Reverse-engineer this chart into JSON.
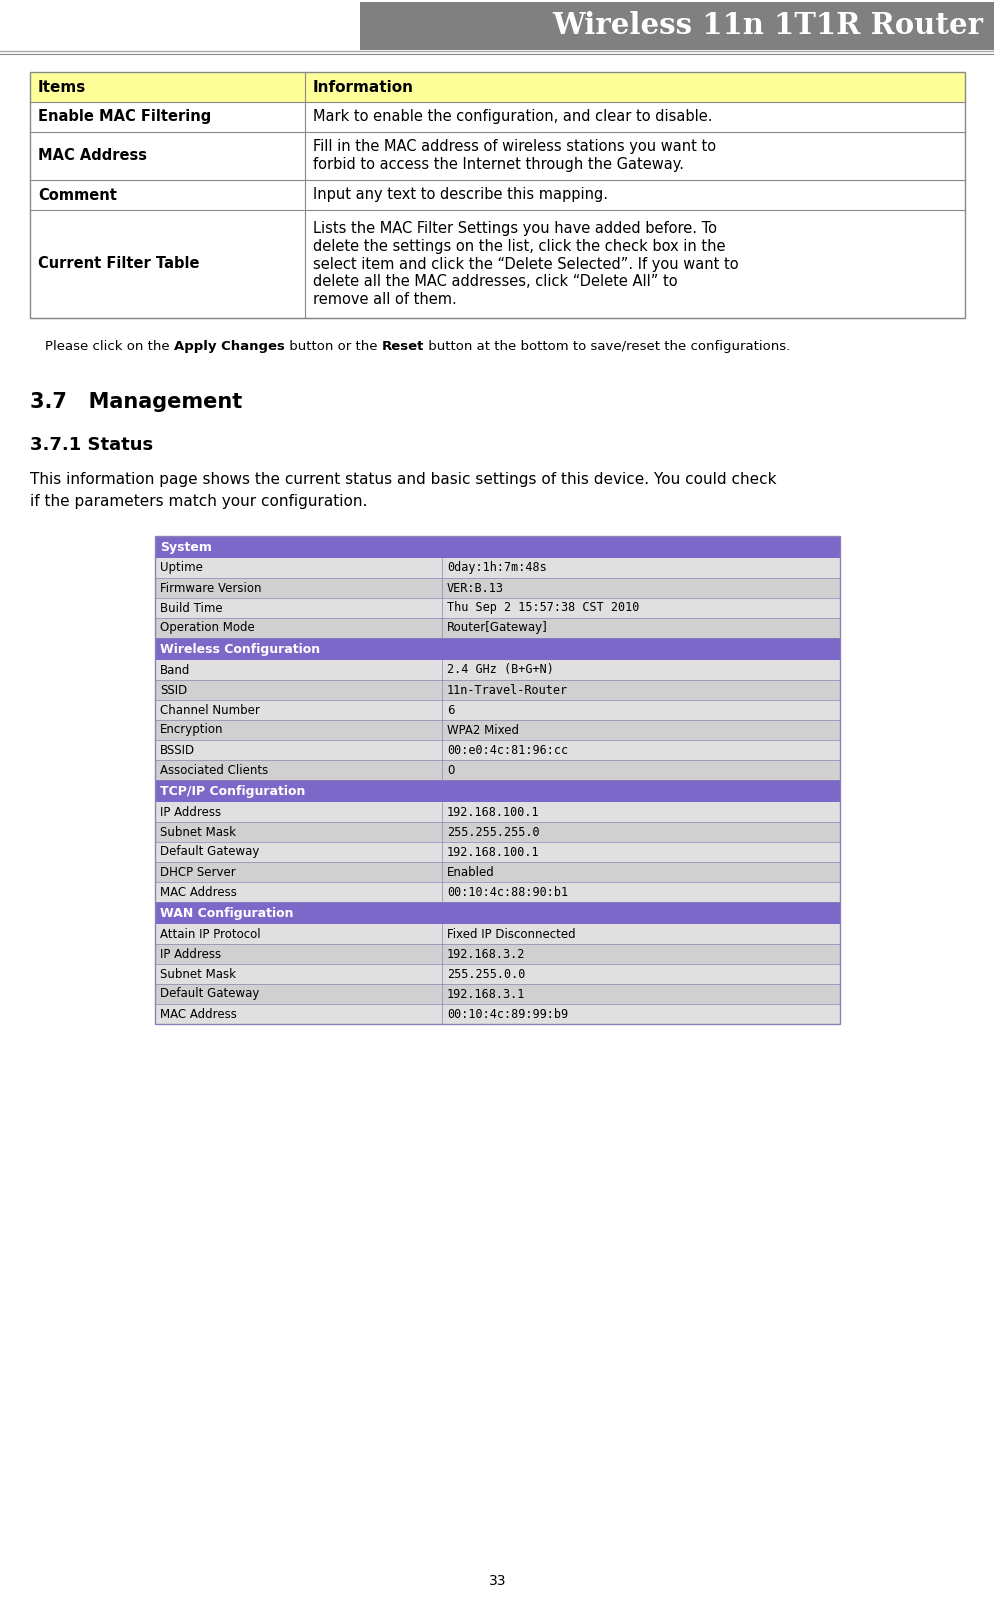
{
  "title": "Wireless 11n 1T1R Router",
  "title_bg": "#808080",
  "title_color": "#ffffff",
  "page_number": "33",
  "top_table": {
    "header": [
      "Items",
      "Information"
    ],
    "header_bg": "#ffff99",
    "rows": [
      [
        "Enable MAC Filtering",
        "Mark to enable the configuration, and clear to disable."
      ],
      [
        "MAC Address",
        "Fill in the MAC address of wireless stations you want to\nforbid to access the Internet through the Gateway."
      ],
      [
        "Comment",
        "Input any text to describe this mapping."
      ],
      [
        "Current Filter Table",
        "Lists the MAC Filter Settings you have added before. To\ndelete the settings on the list, click the check box in the\nselect item and click the “Delete Selected”. If you want to\ndelete all the MAC addresses, click “Delete All” to\nremove all of them."
      ]
    ]
  },
  "note_parts": [
    [
      "Please click on the ",
      false
    ],
    [
      "Apply Changes",
      true
    ],
    [
      " button or the ",
      false
    ],
    [
      "Reset",
      true
    ],
    [
      " button at the bottom to save/reset the configurations.",
      false
    ]
  ],
  "section_header": "3.7   Management",
  "subsection_header": "3.7.1 Status",
  "body_text": "This information page shows the current status and basic settings of this device. You could check\nif the parameters match your configuration.",
  "status_table": {
    "header_color": "#7b68c8",
    "header_text_color": "#ffffff",
    "row_bg_odd": "#e0e0e0",
    "row_bg_even": "#d0d0d0",
    "border_color": "#9080b8",
    "sections": [
      {
        "section_name": "System",
        "rows": [
          [
            "Uptime",
            "0day:1h:7m:48s"
          ],
          [
            "Firmware Version",
            "VER:B.13"
          ],
          [
            "Build Time",
            "Thu Sep 2 15:57:38 CST 2010"
          ],
          [
            "Operation Mode",
            "Router[Gateway]"
          ]
        ]
      },
      {
        "section_name": "Wireless Configuration",
        "rows": [
          [
            "Band",
            "2.4 GHz (B+G+N)"
          ],
          [
            "SSID",
            "11n-Travel-Router"
          ],
          [
            "Channel Number",
            "6"
          ],
          [
            "Encryption",
            "WPA2 Mixed"
          ],
          [
            "BSSID",
            "00:e0:4c:81:96:cc"
          ],
          [
            "Associated Clients",
            "0"
          ]
        ]
      },
      {
        "section_name": "TCP/IP Configuration",
        "rows": [
          [
            "IP Address",
            "192.168.100.1"
          ],
          [
            "Subnet Mask",
            "255.255.255.0"
          ],
          [
            "Default Gateway",
            "192.168.100.1"
          ],
          [
            "DHCP Server",
            "Enabled"
          ],
          [
            "MAC Address",
            "00:10:4c:88:90:b1"
          ]
        ]
      },
      {
        "section_name": "WAN Configuration",
        "rows": [
          [
            "Attain IP Protocol",
            "Fixed IP Disconnected"
          ],
          [
            "IP Address",
            "192.168.3.2"
          ],
          [
            "Subnet Mask",
            "255.255.0.0"
          ],
          [
            "Default Gateway",
            "192.168.3.1"
          ],
          [
            "MAC Address",
            "00:10:4c:89:99:b9"
          ]
        ]
      }
    ]
  }
}
